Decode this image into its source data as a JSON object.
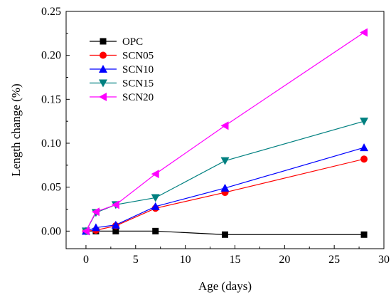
{
  "chart_data": {
    "type": "line",
    "title": "",
    "xlabel": "Age (days)",
    "ylabel": "Length change (%)",
    "xlim": [
      -2,
      30
    ],
    "ylim": [
      -0.02,
      0.25
    ],
    "xticks": [
      0,
      5,
      10,
      15,
      20,
      25,
      30
    ],
    "yticks": [
      0.0,
      0.05,
      0.1,
      0.15,
      0.2,
      0.25
    ],
    "x": [
      0,
      1,
      3,
      7,
      14,
      28
    ],
    "grid": false,
    "legend_position": "top-left",
    "series": [
      {
        "name": "OPC",
        "color": "#000000",
        "marker": "square",
        "values": [
          0.0,
          0.0,
          0.0,
          0.0,
          -0.004,
          -0.004
        ]
      },
      {
        "name": "SCN05",
        "color": "#ff0000",
        "marker": "circle",
        "values": [
          0.0,
          0.001,
          0.006,
          0.026,
          0.044,
          0.082
        ]
      },
      {
        "name": "SCN10",
        "color": "#0000ff",
        "marker": "triangle-up",
        "values": [
          0.0,
          0.004,
          0.007,
          0.028,
          0.049,
          0.095
        ]
      },
      {
        "name": "SCN15",
        "color": "#008080",
        "marker": "triangle-down",
        "values": [
          0.0,
          0.021,
          0.03,
          0.038,
          0.08,
          0.125
        ]
      },
      {
        "name": "SCN20",
        "color": "#ff00ff",
        "marker": "triangle-left",
        "values": [
          0.0,
          0.022,
          0.03,
          0.065,
          0.12,
          0.226
        ]
      }
    ]
  }
}
